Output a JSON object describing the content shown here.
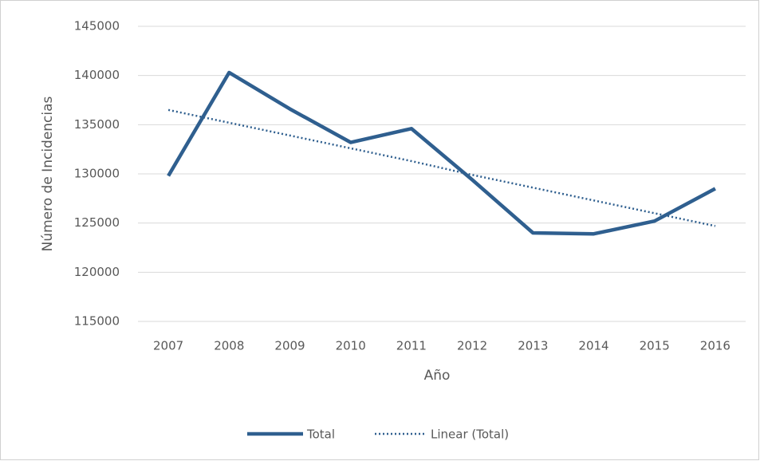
{
  "chart_data": {
    "type": "line",
    "categories": [
      "2007",
      "2008",
      "2009",
      "2010",
      "2011",
      "2012",
      "2013",
      "2014",
      "2015",
      "2016"
    ],
    "series": [
      {
        "name": "Total",
        "color": "#2f5f8f",
        "values": [
          129800,
          140300,
          136600,
          133200,
          134600,
          129400,
          124000,
          123900,
          125200,
          128500
        ]
      },
      {
        "name": "Linear (Total)",
        "color": "#2f5f8f",
        "values": [
          136500,
          135200,
          133900,
          132600,
          131300,
          129900,
          128600,
          127300,
          126000,
          124700
        ]
      }
    ],
    "x_label": "Año",
    "y_label": "Número de Incidencias",
    "ylim": [
      115000,
      145000
    ],
    "yticks": [
      115000,
      120000,
      125000,
      130000,
      135000,
      140000,
      145000
    ],
    "grid": true,
    "legend": "bottom"
  }
}
